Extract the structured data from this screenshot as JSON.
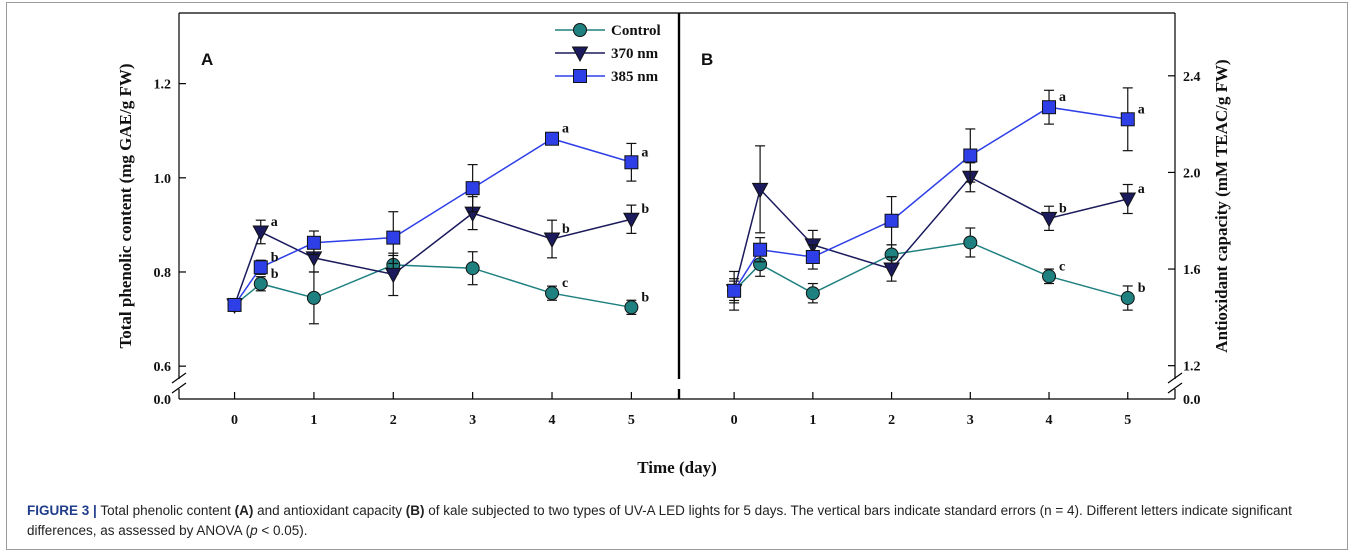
{
  "figure": {
    "caption_label": "FIGURE 3 |",
    "caption_parts": [
      "Total phenolic content ",
      "(A)",
      " and antioxidant capacity ",
      "(B)",
      " of kale subjected to two types of UV-A LED lights for 5 days. The vertical bars indicate standard errors (n = 4). Different letters indicate significant differences, as assessed by ANOVA (",
      "p",
      " < 0.05)."
    ]
  },
  "colors": {
    "control": "#1f8080",
    "nm370": "#1a1a5c",
    "nm385": "#2e3fe8"
  },
  "chart_data": [
    {
      "type": "line",
      "panel_label": "A",
      "xlabel": "Time (day)",
      "ylabel": "Total phenolic content (mg GAE/g FW)",
      "y_axis_side": "left",
      "x_ticks": [
        "0",
        "1",
        "2",
        "3",
        "4",
        "5"
      ],
      "xlim": [
        -0.7,
        5.6
      ],
      "ylim": [
        0.56,
        1.35
      ],
      "y_ticks": [
        "0.6",
        "0.8",
        "1.0",
        "1.2"
      ],
      "y_break_label": "0.0",
      "legend_position": "top-center",
      "series": [
        {
          "name": "Control",
          "color_key": "control",
          "marker": "circle",
          "x": [
            0,
            0.33,
            1,
            2,
            3,
            4,
            5
          ],
          "y": [
            0.73,
            0.775,
            0.745,
            0.815,
            0.808,
            0.755,
            0.725
          ],
          "err": [
            0.01,
            0.015,
            0.055,
            0.02,
            0.035,
            0.015,
            0.015
          ],
          "labels": [
            "",
            "b",
            "",
            "",
            "",
            "c",
            "b"
          ]
        },
        {
          "name": "370 nm",
          "color_key": "nm370",
          "marker": "triangle-down",
          "x": [
            0,
            0.33,
            1,
            2,
            3,
            4,
            5
          ],
          "y": [
            0.73,
            0.885,
            0.83,
            0.795,
            0.925,
            0.87,
            0.912
          ],
          "err": [
            0.01,
            0.025,
            0.03,
            0.045,
            0.035,
            0.04,
            0.03
          ],
          "labels": [
            "",
            "a",
            "",
            "",
            "",
            "b",
            "b"
          ]
        },
        {
          "name": "385 nm",
          "color_key": "nm385",
          "marker": "square",
          "x": [
            0,
            0.33,
            1,
            2,
            3,
            4,
            5
          ],
          "y": [
            0.73,
            0.81,
            0.862,
            0.873,
            0.978,
            1.083,
            1.033
          ],
          "err": [
            0.01,
            0.015,
            0.025,
            0.055,
            0.05,
            0.01,
            0.04
          ],
          "labels": [
            "",
            "b",
            "",
            "",
            "",
            "a",
            "a"
          ]
        }
      ]
    },
    {
      "type": "line",
      "panel_label": "B",
      "xlabel": "Time (day)",
      "ylabel": "Antioxidant capacity (mM TEAC/g FW)",
      "y_axis_side": "right",
      "x_ticks": [
        "0",
        "1",
        "2",
        "3",
        "4",
        "5"
      ],
      "xlim": [
        -0.7,
        5.6
      ],
      "ylim": [
        1.12,
        2.66
      ],
      "y_ticks": [
        "1.2",
        "1.6",
        "2.0",
        "2.4"
      ],
      "y_break_label": "0.0",
      "series": [
        {
          "name": "Control",
          "color_key": "control",
          "marker": "circle",
          "x": [
            0,
            0.33,
            1,
            2,
            3,
            4,
            5
          ],
          "y": [
            1.51,
            1.62,
            1.5,
            1.66,
            1.71,
            1.57,
            1.48
          ],
          "err": [
            0.04,
            0.05,
            0.04,
            0.04,
            0.06,
            0.03,
            0.05
          ],
          "labels": [
            "",
            "",
            "",
            "",
            "",
            "c",
            "b"
          ]
        },
        {
          "name": "370 nm",
          "color_key": "nm370",
          "marker": "triangle-down",
          "x": [
            0,
            0.33,
            1,
            2,
            3,
            4,
            5
          ],
          "y": [
            1.51,
            1.93,
            1.7,
            1.6,
            1.98,
            1.81,
            1.89
          ],
          "err": [
            0.05,
            0.18,
            0.06,
            0.05,
            0.06,
            0.05,
            0.06
          ],
          "labels": [
            "",
            "",
            "",
            "",
            "",
            "b",
            "a"
          ]
        },
        {
          "name": "385 nm",
          "color_key": "nm385",
          "marker": "square",
          "x": [
            0,
            0.33,
            1,
            2,
            3,
            4,
            5
          ],
          "y": [
            1.51,
            1.68,
            1.65,
            1.8,
            2.07,
            2.27,
            2.22
          ],
          "err": [
            0.08,
            0.05,
            0.05,
            0.1,
            0.11,
            0.07,
            0.13
          ],
          "labels": [
            "",
            "",
            "",
            "",
            "",
            "a",
            "a"
          ]
        }
      ]
    }
  ]
}
